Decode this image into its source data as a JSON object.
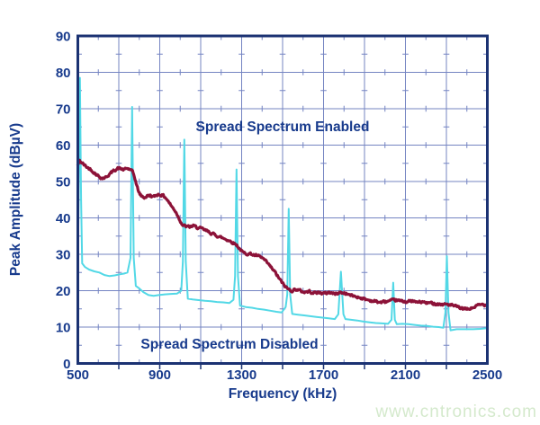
{
  "watermark": {
    "text": "www.cntronics.com",
    "color": "#d4e9cc"
  },
  "chart_data": {
    "type": "line",
    "title": "",
    "xlabel": "Frequency (kHz)",
    "ylabel": "Peak Amplitude (dBµV)",
    "xlim": [
      500,
      2500
    ],
    "ylim": [
      0,
      90
    ],
    "xticks": [
      500,
      900,
      1300,
      1700,
      2100,
      2500
    ],
    "xtick_labels": [
      "500",
      "900",
      "1300",
      "1700",
      "2100",
      "2500"
    ],
    "yticks": [
      0,
      10,
      20,
      30,
      40,
      50,
      60,
      70,
      80,
      90
    ],
    "ytick_labels": [
      "0",
      "10",
      "20",
      "30",
      "40",
      "50",
      "60",
      "70",
      "80",
      "90"
    ],
    "grid": {
      "on": true,
      "x_major_step": 200,
      "y_major_step": 10,
      "x_minor_step": 100,
      "y_minor_step": 5,
      "legend_position": "none"
    },
    "colors": {
      "text": "#173a8c",
      "border": "#1b3272",
      "grid": "#7484c2",
      "enabled_series": "#8c1238",
      "disabled_series": "#52d8e6",
      "background": "#ffffff"
    },
    "annotations": [
      {
        "text": "Spread Spectrum Enabled",
        "x_kHz": 1500,
        "y_dBuV": 64
      },
      {
        "text": "Spread Spectrum Disabled",
        "x_kHz": 1240,
        "y_dBuV": 5
      }
    ],
    "series": [
      {
        "name": "Spread Spectrum Enabled",
        "style": "noisy",
        "points": [
          [
            500,
            54.5
          ],
          [
            508,
            55.7
          ],
          [
            516,
            55.3
          ],
          [
            530,
            54.6
          ],
          [
            545,
            53.9
          ],
          [
            560,
            53.4
          ],
          [
            575,
            52.7
          ],
          [
            590,
            52.0
          ],
          [
            605,
            51.3
          ],
          [
            620,
            50.9
          ],
          [
            635,
            51.1
          ],
          [
            650,
            51.8
          ],
          [
            665,
            52.5
          ],
          [
            680,
            53.2
          ],
          [
            695,
            53.6
          ],
          [
            710,
            53.5
          ],
          [
            725,
            53.2
          ],
          [
            740,
            53.6
          ],
          [
            755,
            53.3
          ],
          [
            768,
            52.6
          ],
          [
            778,
            51.0
          ],
          [
            788,
            48.8
          ],
          [
            798,
            47.0
          ],
          [
            810,
            46.0
          ],
          [
            825,
            45.6
          ],
          [
            840,
            46.0
          ],
          [
            855,
            46.2
          ],
          [
            870,
            45.7
          ],
          [
            885,
            46.4
          ],
          [
            900,
            46.4
          ],
          [
            915,
            46.2
          ],
          [
            930,
            45.5
          ],
          [
            945,
            44.3
          ],
          [
            960,
            43.0
          ],
          [
            975,
            42.0
          ],
          [
            990,
            40.4
          ],
          [
            1002,
            39.0
          ],
          [
            1012,
            38.0
          ],
          [
            1025,
            37.7
          ],
          [
            1045,
            37.5
          ],
          [
            1065,
            37.8
          ],
          [
            1085,
            37.3
          ],
          [
            1105,
            37.0
          ],
          [
            1130,
            36.4
          ],
          [
            1155,
            35.7
          ],
          [
            1180,
            35.1
          ],
          [
            1205,
            34.5
          ],
          [
            1230,
            34.0
          ],
          [
            1255,
            33.3
          ],
          [
            1275,
            32.6
          ],
          [
            1292,
            31.4
          ],
          [
            1308,
            30.4
          ],
          [
            1325,
            30.2
          ],
          [
            1345,
            30.1
          ],
          [
            1365,
            29.7
          ],
          [
            1385,
            29.4
          ],
          [
            1405,
            28.8
          ],
          [
            1425,
            27.6
          ],
          [
            1445,
            26.3
          ],
          [
            1465,
            24.9
          ],
          [
            1485,
            23.2
          ],
          [
            1505,
            21.6
          ],
          [
            1525,
            20.5
          ],
          [
            1545,
            20.0
          ],
          [
            1565,
            20.4
          ],
          [
            1585,
            20.0
          ],
          [
            1605,
            19.6
          ],
          [
            1630,
            19.8
          ],
          [
            1655,
            19.4
          ],
          [
            1680,
            19.5
          ],
          [
            1705,
            19.2
          ],
          [
            1730,
            19.6
          ],
          [
            1755,
            19.1
          ],
          [
            1780,
            19.5
          ],
          [
            1805,
            19.3
          ],
          [
            1830,
            18.8
          ],
          [
            1855,
            18.4
          ],
          [
            1880,
            18.1
          ],
          [
            1905,
            17.6
          ],
          [
            1930,
            17.3
          ],
          [
            1955,
            17.0
          ],
          [
            1980,
            16.8
          ],
          [
            2005,
            17.0
          ],
          [
            2030,
            17.2
          ],
          [
            2055,
            17.4
          ],
          [
            2080,
            17.1
          ],
          [
            2105,
            17.0
          ],
          [
            2130,
            17.1
          ],
          [
            2155,
            16.8
          ],
          [
            2180,
            16.9
          ],
          [
            2205,
            16.6
          ],
          [
            2230,
            16.6
          ],
          [
            2255,
            16.4
          ],
          [
            2280,
            16.2
          ],
          [
            2305,
            16.3
          ],
          [
            2330,
            15.9
          ],
          [
            2355,
            15.5
          ],
          [
            2380,
            15.0
          ],
          [
            2405,
            14.9
          ],
          [
            2425,
            15.2
          ],
          [
            2450,
            15.9
          ],
          [
            2475,
            16.2
          ],
          [
            2500,
            16.1
          ]
        ]
      },
      {
        "name": "Spread Spectrum Disabled",
        "style": "plain",
        "points": [
          [
            500,
            28
          ],
          [
            504,
            45
          ],
          [
            510,
            78.5
          ],
          [
            516,
            45
          ],
          [
            521,
            27.5
          ],
          [
            535,
            26.5
          ],
          [
            555,
            25.8
          ],
          [
            580,
            25.3
          ],
          [
            605,
            25.0
          ],
          [
            630,
            24.3
          ],
          [
            655,
            24.0
          ],
          [
            680,
            24.2
          ],
          [
            705,
            24.5
          ],
          [
            725,
            24.7
          ],
          [
            742,
            25.0
          ],
          [
            757,
            29
          ],
          [
            765,
            70.5
          ],
          [
            773,
            29
          ],
          [
            783,
            21.3
          ],
          [
            800,
            20.6
          ],
          [
            820,
            19.6
          ],
          [
            845,
            18.8
          ],
          [
            870,
            18.6
          ],
          [
            895,
            18.8
          ],
          [
            925,
            19.0
          ],
          [
            955,
            19.1
          ],
          [
            985,
            19.2
          ],
          [
            1005,
            20.0
          ],
          [
            1013,
            28
          ],
          [
            1020,
            61.5
          ],
          [
            1027,
            28
          ],
          [
            1037,
            17.8
          ],
          [
            1060,
            17.6
          ],
          [
            1090,
            17.4
          ],
          [
            1120,
            17.2
          ],
          [
            1150,
            17.1
          ],
          [
            1180,
            16.9
          ],
          [
            1210,
            16.8
          ],
          [
            1240,
            16.6
          ],
          [
            1260,
            17.5
          ],
          [
            1268,
            24
          ],
          [
            1275,
            53.3
          ],
          [
            1282,
            24
          ],
          [
            1292,
            15.9
          ],
          [
            1320,
            15.5
          ],
          [
            1350,
            15.3
          ],
          [
            1380,
            15.0
          ],
          [
            1410,
            14.8
          ],
          [
            1440,
            14.5
          ],
          [
            1470,
            14.2
          ],
          [
            1495,
            14.0
          ],
          [
            1515,
            15.5
          ],
          [
            1523,
            19
          ],
          [
            1530,
            42.5
          ],
          [
            1537,
            19
          ],
          [
            1547,
            13.6
          ],
          [
            1575,
            13.4
          ],
          [
            1605,
            13.2
          ],
          [
            1635,
            13.0
          ],
          [
            1665,
            12.8
          ],
          [
            1695,
            12.6
          ],
          [
            1725,
            12.4
          ],
          [
            1755,
            12.2
          ],
          [
            1772,
            13.5
          ],
          [
            1785,
            25.2
          ],
          [
            1797,
            13.5
          ],
          [
            1807,
            12.2
          ],
          [
            1835,
            12.0
          ],
          [
            1865,
            11.8
          ],
          [
            1895,
            11.5
          ],
          [
            1925,
            11.3
          ],
          [
            1955,
            11.1
          ],
          [
            1985,
            11.0
          ],
          [
            2015,
            10.9
          ],
          [
            2032,
            12
          ],
          [
            2040,
            22.2
          ],
          [
            2048,
            12
          ],
          [
            2058,
            10.8
          ],
          [
            2085,
            10.9
          ],
          [
            2115,
            10.8
          ],
          [
            2145,
            10.6
          ],
          [
            2175,
            10.4
          ],
          [
            2205,
            10.3
          ],
          [
            2235,
            10.1
          ],
          [
            2262,
            10.0
          ],
          [
            2285,
            9.8
          ],
          [
            2295,
            14
          ],
          [
            2302,
            29.5
          ],
          [
            2310,
            14
          ],
          [
            2320,
            9.1
          ],
          [
            2350,
            9.4
          ],
          [
            2390,
            9.4
          ],
          [
            2430,
            9.4
          ],
          [
            2465,
            9.5
          ],
          [
            2500,
            9.7
          ]
        ]
      }
    ]
  }
}
